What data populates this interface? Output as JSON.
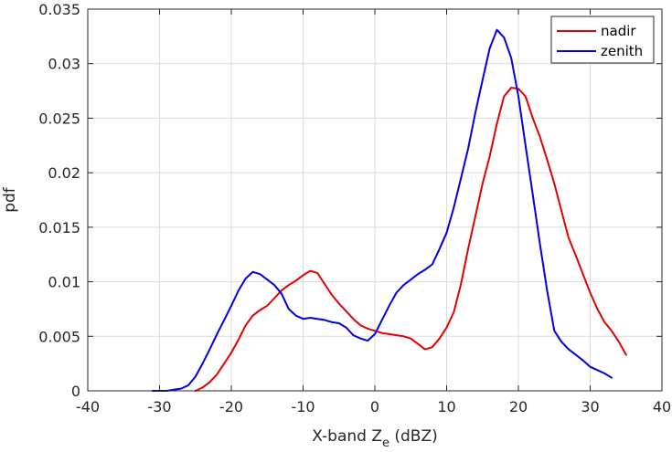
{
  "chart_data": {
    "type": "line",
    "xlabel_main": "X-band Z",
    "xlabel_sub": "e",
    "xlabel_unit": " (dBZ)",
    "ylabel": "pdf",
    "xlim": [
      -40,
      40
    ],
    "ylim": [
      0,
      0.035
    ],
    "xticks": [
      -40,
      -30,
      -20,
      -10,
      0,
      10,
      20,
      30,
      40
    ],
    "xtick_labels": [
      "-40",
      "-30",
      "-20",
      "-10",
      "0",
      "10",
      "20",
      "30",
      "40"
    ],
    "yticks": [
      0,
      0.005,
      0.01,
      0.015,
      0.02,
      0.025,
      0.03,
      0.035
    ],
    "ytick_labels": [
      "0",
      "0.005",
      "0.01",
      "0.015",
      "0.02",
      "0.025",
      "0.03",
      "0.035"
    ],
    "grid": true,
    "legend_position": "top-right",
    "series": [
      {
        "name": "nadir",
        "color": "#e60000",
        "x": [
          -25,
          -24,
          -23,
          -22,
          -21,
          -20,
          -19,
          -18,
          -17,
          -16,
          -15,
          -14,
          -13,
          -12,
          -11,
          -10,
          -9,
          -8,
          -7,
          -6,
          -5,
          -4,
          -3,
          -2,
          -1,
          0,
          1,
          2,
          3,
          4,
          5,
          6,
          7,
          8,
          9,
          10,
          11,
          12,
          13,
          14,
          15,
          16,
          17,
          18,
          19,
          20,
          21,
          22,
          23,
          24,
          25,
          26,
          27,
          28,
          29,
          30,
          31,
          32,
          33,
          34,
          35
        ],
        "y": [
          0.0,
          0.0003,
          0.0008,
          0.0015,
          0.0025,
          0.0035,
          0.0047,
          0.006,
          0.0069,
          0.0074,
          0.0078,
          0.0085,
          0.0092,
          0.0097,
          0.0101,
          0.0106,
          0.011,
          0.0108,
          0.0098,
          0.0088,
          0.008,
          0.0073,
          0.0066,
          0.006,
          0.0057,
          0.0055,
          0.0053,
          0.0052,
          0.0051,
          0.005,
          0.0048,
          0.0043,
          0.0038,
          0.004,
          0.0048,
          0.0058,
          0.0072,
          0.0098,
          0.013,
          0.016,
          0.019,
          0.0215,
          0.0245,
          0.027,
          0.0278,
          0.0277,
          0.027,
          0.025,
          0.0233,
          0.0212,
          0.019,
          0.0165,
          0.014,
          0.0124,
          0.0107,
          0.009,
          0.0075,
          0.0063,
          0.0055,
          0.0045,
          0.0033
        ]
      },
      {
        "name": "zenith",
        "color": "#0000e6",
        "x": [
          -31,
          -30,
          -29,
          -28,
          -27,
          -26,
          -25,
          -24,
          -23,
          -22,
          -21,
          -20,
          -19,
          -18,
          -17,
          -16,
          -15,
          -14,
          -13,
          -12,
          -11,
          -10,
          -9,
          -8,
          -7,
          -6,
          -5,
          -4,
          -3,
          -2,
          -1,
          0,
          1,
          2,
          3,
          4,
          5,
          6,
          7,
          8,
          9,
          10,
          11,
          12,
          13,
          14,
          15,
          16,
          17,
          18,
          19,
          20,
          21,
          22,
          23,
          24,
          25,
          26,
          27,
          28,
          29,
          30,
          31,
          32,
          33
        ],
        "y": [
          0.0,
          0.0,
          0.0,
          0.0001,
          0.0002,
          0.0005,
          0.0013,
          0.0025,
          0.0038,
          0.0052,
          0.0065,
          0.0078,
          0.0092,
          0.0103,
          0.0109,
          0.0107,
          0.0102,
          0.0097,
          0.0089,
          0.0075,
          0.0069,
          0.0066,
          0.0067,
          0.0066,
          0.0065,
          0.0063,
          0.0062,
          0.0058,
          0.0051,
          0.0048,
          0.0046,
          0.0052,
          0.0065,
          0.0078,
          0.009,
          0.0097,
          0.0102,
          0.0107,
          0.0111,
          0.0116,
          0.013,
          0.0145,
          0.0168,
          0.0195,
          0.0222,
          0.0255,
          0.0285,
          0.0314,
          0.0331,
          0.0324,
          0.0305,
          0.027,
          0.0225,
          0.018,
          0.0135,
          0.0092,
          0.0055,
          0.0045,
          0.0038,
          0.0033,
          0.0028,
          0.0022,
          0.0019,
          0.0016,
          0.0012
        ]
      }
    ]
  }
}
